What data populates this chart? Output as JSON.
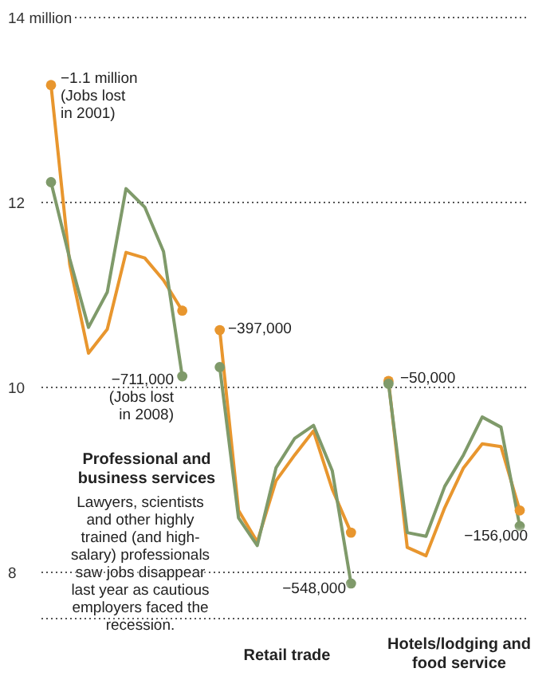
{
  "chart_data": {
    "type": "line",
    "categories": [
      null,
      null,
      null,
      null,
      null,
      null,
      null,
      null,
      null,
      null,
      null,
      null,
      null,
      null,
      null,
      null,
      null,
      null,
      null,
      null,
      null,
      null,
      null,
      null,
      null,
      null
    ],
    "series": [
      {
        "color": "#e8962e",
        "values": [
          13.27,
          11.33,
          10.37,
          10.63,
          11.46,
          11.4,
          11.16,
          10.83,
          null,
          10.62,
          8.67,
          8.33,
          8.99,
          9.27,
          9.53,
          8.9,
          8.43,
          null,
          10.07,
          8.27,
          8.18,
          8.7,
          9.13,
          9.39,
          9.36,
          8.67
        ]
      },
      {
        "color": "#7f9a6a",
        "values": [
          12.22,
          11.39,
          10.65,
          11.03,
          12.15,
          11.95,
          11.47,
          10.12,
          null,
          10.22,
          8.59,
          8.29,
          9.13,
          9.45,
          9.59,
          9.1,
          7.88,
          null,
          10.04,
          8.43,
          8.39,
          8.93,
          9.27,
          9.68,
          9.57,
          8.5
        ]
      }
    ],
    "ylim": [
      7.5,
      14
    ],
    "yticks": [
      {
        "value": 14,
        "label": "14 million"
      },
      12,
      10,
      8
    ],
    "grid": "y",
    "tick_labels": "y",
    "annotations": [
      "−1.1 million\n(Jobs lost\nin 2001)",
      "−711,000\n(Jobs lost\nin 2008)",
      "−397,000",
      "−548,000",
      "−50,000",
      "−156,000",
      "Professional and business services",
      "Lawyers, scientists and other highly trained (and high-salary) professionals saw jobs disappear last year as cautious employers faced the recession.",
      "Retail trade",
      "Hotels/lodging and food service"
    ]
  }
}
